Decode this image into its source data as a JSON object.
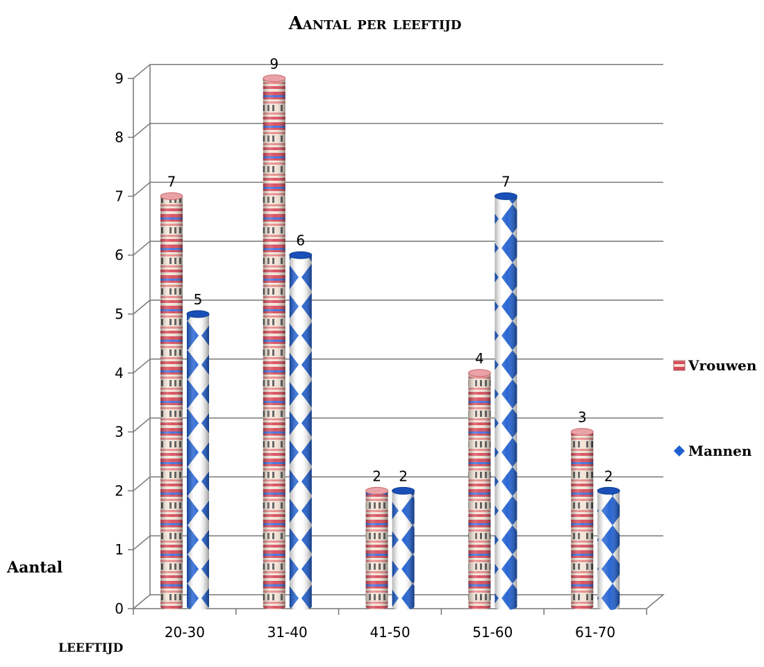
{
  "chart_data": {
    "type": "bar",
    "title": "Aantal per leeftijd",
    "categories": [
      "20-30",
      "31-40",
      "41-50",
      "51-60",
      "61-70"
    ],
    "series": [
      {
        "name": "Vrouwen",
        "values": [
          7,
          9,
          2,
          4,
          3
        ]
      },
      {
        "name": "Mannen",
        "values": [
          5,
          6,
          2,
          7,
          2
        ]
      }
    ],
    "ylabel": "Aantal",
    "xlabel": "LEEFTIJD",
    "ylim": [
      0,
      9
    ],
    "yticks": [
      "0",
      "1",
      "2",
      "3",
      "4",
      "5",
      "6",
      "7",
      "8",
      "9"
    ],
    "grid": true,
    "legend_position": "right",
    "colors": {
      "vrouwen": "#d94a5a",
      "mannen": "#1f5fd1",
      "grid": "#777777"
    }
  }
}
